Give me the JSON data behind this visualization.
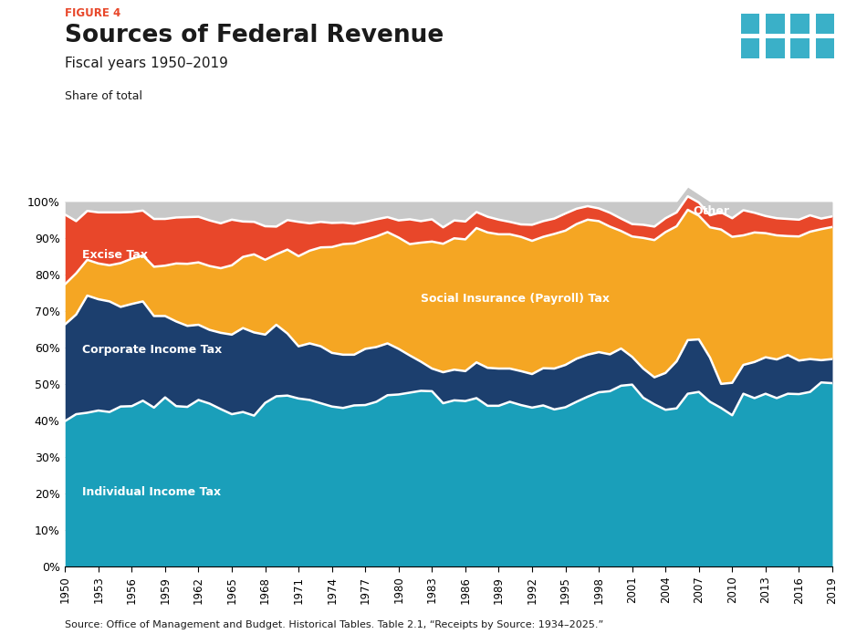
{
  "title": "Sources of Federal Revenue",
  "figure_label": "FIGURE 4",
  "subtitle": "Fiscal years 1950–2019",
  "ylabel": "Share of total",
  "source_text": "Source: Office of Management and Budget. Historical Tables. Table 2.1, “Receipts by Source: 1934–2025.”",
  "colors": {
    "individual": "#1a9fba",
    "corporate": "#1c3f6e",
    "payroll": "#f5a623",
    "excise": "#e8472a",
    "other": "#c8c8c8"
  },
  "years": [
    1950,
    1951,
    1952,
    1953,
    1954,
    1955,
    1956,
    1957,
    1958,
    1959,
    1960,
    1961,
    1962,
    1963,
    1964,
    1965,
    1966,
    1967,
    1968,
    1969,
    1970,
    1971,
    1972,
    1973,
    1974,
    1975,
    1976,
    1977,
    1978,
    1979,
    1980,
    1981,
    1982,
    1983,
    1984,
    1985,
    1986,
    1987,
    1988,
    1989,
    1990,
    1991,
    1992,
    1993,
    1994,
    1995,
    1996,
    1997,
    1998,
    1999,
    2000,
    2001,
    2002,
    2003,
    2004,
    2005,
    2006,
    2007,
    2008,
    2009,
    2010,
    2011,
    2012,
    2013,
    2014,
    2015,
    2016,
    2017,
    2018,
    2019
  ],
  "individual": [
    39.9,
    41.8,
    42.2,
    42.8,
    42.4,
    43.9,
    44.0,
    45.5,
    43.6,
    46.4,
    44.0,
    43.8,
    45.7,
    44.7,
    43.2,
    41.8,
    42.4,
    41.4,
    44.9,
    46.7,
    46.9,
    46.1,
    45.7,
    44.8,
    43.9,
    43.5,
    44.2,
    44.3,
    45.2,
    47.0,
    47.2,
    47.7,
    48.2,
    48.1,
    44.8,
    45.6,
    45.4,
    46.2,
    44.1,
    44.1,
    45.2,
    44.3,
    43.6,
    44.2,
    43.1,
    43.7,
    45.2,
    46.6,
    47.8,
    48.1,
    49.6,
    49.9,
    46.3,
    44.5,
    43.0,
    43.4,
    47.4,
    47.9,
    45.2,
    43.5,
    41.5,
    47.4,
    46.2,
    47.4,
    46.2,
    47.4,
    47.3,
    47.9,
    50.5,
    50.3
  ],
  "corporate": [
    26.5,
    27.3,
    32.1,
    30.5,
    30.3,
    27.3,
    28.0,
    27.2,
    25.1,
    22.3,
    23.2,
    22.2,
    20.6,
    20.2,
    20.9,
    21.8,
    23.0,
    22.8,
    18.7,
    19.6,
    17.0,
    14.3,
    15.5,
    15.6,
    14.7,
    14.6,
    13.9,
    15.4,
    15.0,
    14.2,
    12.5,
    10.2,
    8.0,
    6.2,
    8.5,
    8.4,
    8.2,
    9.8,
    10.4,
    10.2,
    9.1,
    9.3,
    9.2,
    10.2,
    11.2,
    11.6,
    11.8,
    11.5,
    11.0,
    10.1,
    10.2,
    7.6,
    8.0,
    7.4,
    10.1,
    12.9,
    14.7,
    14.4,
    12.1,
    6.6,
    8.9,
    7.9,
    9.9,
    10.0,
    10.6,
    10.6,
    9.2,
    9.0,
    6.1,
    6.6
  ],
  "payroll": [
    11.0,
    11.3,
    9.8,
    9.8,
    9.9,
    12.0,
    12.4,
    12.6,
    13.5,
    13.8,
    15.9,
    17.0,
    17.1,
    17.5,
    17.7,
    19.0,
    19.5,
    21.4,
    20.5,
    19.3,
    23.0,
    24.7,
    25.4,
    27.1,
    29.0,
    30.3,
    30.5,
    29.9,
    30.3,
    30.5,
    30.5,
    30.5,
    32.6,
    34.8,
    35.2,
    36.0,
    36.1,
    36.8,
    37.1,
    36.8,
    36.8,
    36.8,
    36.5,
    36.0,
    36.9,
    36.8,
    36.9,
    37.0,
    35.9,
    35.0,
    32.2,
    33.0,
    35.8,
    37.6,
    38.6,
    37.0,
    35.7,
    33.9,
    35.7,
    42.3,
    40.0,
    35.5,
    35.5,
    34.0,
    34.0,
    32.6,
    34.0,
    34.9,
    35.9,
    36.2
  ],
  "excise": [
    19.1,
    14.3,
    13.4,
    14.0,
    14.5,
    13.9,
    12.8,
    12.3,
    13.1,
    12.8,
    12.6,
    12.8,
    12.5,
    12.5,
    12.3,
    12.5,
    9.7,
    8.9,
    9.2,
    7.6,
    8.1,
    9.4,
    7.5,
    7.0,
    6.6,
    5.9,
    5.4,
    4.9,
    4.7,
    4.1,
    4.7,
    6.8,
    5.9,
    6.1,
    4.5,
    4.9,
    4.9,
    4.4,
    4.3,
    4.0,
    3.4,
    3.4,
    4.4,
    4.3,
    4.2,
    4.7,
    4.2,
    3.7,
    3.5,
    3.8,
    3.4,
    3.4,
    3.6,
    3.7,
    3.8,
    3.8,
    3.7,
    3.6,
    3.3,
    4.7,
    5.1,
    6.9,
    5.4,
    4.7,
    4.7,
    4.7,
    4.6,
    4.5,
    2.9,
    2.9
  ],
  "other": [
    3.5,
    5.3,
    2.5,
    2.9,
    2.9,
    2.9,
    2.8,
    2.4,
    4.7,
    4.7,
    4.3,
    4.2,
    4.1,
    5.1,
    5.9,
    4.9,
    5.4,
    5.5,
    6.7,
    6.8,
    5.0,
    5.5,
    5.9,
    5.5,
    5.8,
    5.7,
    6.0,
    5.5,
    4.8,
    4.2,
    5.1,
    4.8,
    5.3,
    4.8,
    7.0,
    5.1,
    5.4,
    2.8,
    4.1,
    4.9,
    5.5,
    6.2,
    6.3,
    5.3,
    4.6,
    3.2,
    1.9,
    1.2,
    1.8,
    3.0,
    4.6,
    6.1,
    6.3,
    6.8,
    4.5,
    2.9,
    2.5,
    2.2,
    3.7,
    2.9,
    4.5,
    2.3,
    3.0,
    3.9,
    4.5,
    4.7,
    4.9,
    3.7,
    4.6,
    4.0
  ]
}
